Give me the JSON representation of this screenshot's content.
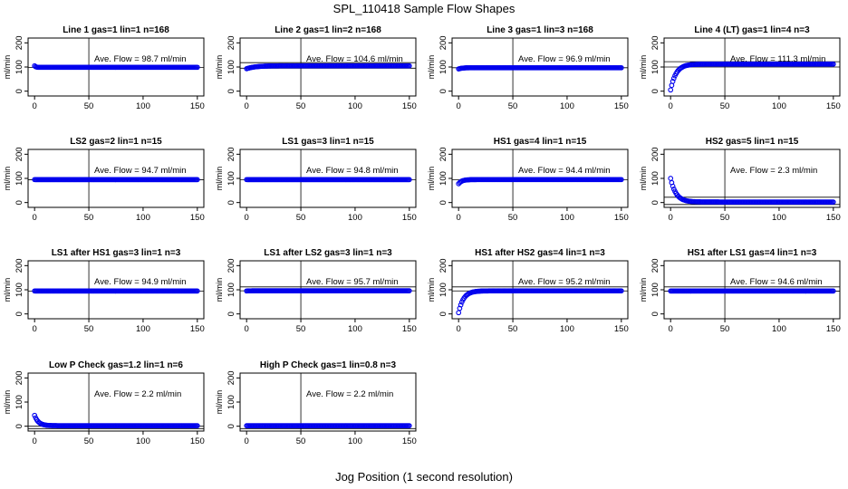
{
  "figure": {
    "title": "SPL_110418  Sample Flow Shapes",
    "xlabel": "Jog Position (1 second resolution)"
  },
  "chart_data": [
    {
      "type": "scatter",
      "title": "Line 1 gas=1 lin=1 n=168",
      "ylabel": "ml/min",
      "annotation": "Ave. Flow = 98.7  ml/min",
      "xlim": [
        0,
        150
      ],
      "ylim": [
        -20,
        220
      ],
      "xticks": [
        "0",
        "50",
        "100",
        "150"
      ],
      "yticks": [
        "0",
        "100",
        "200"
      ],
      "vline": 50,
      "hlines": [
        98.7
      ],
      "shape": {
        "start": 105,
        "end": 98.7,
        "tau": 1
      }
    },
    {
      "type": "scatter",
      "title": "Line 2 gas=1 lin=2 n=168",
      "ylabel": "ml/min",
      "annotation": "Ave. Flow = 104.6  ml/min",
      "xlim": [
        0,
        150
      ],
      "ylim": [
        -20,
        220
      ],
      "xticks": [
        "0",
        "50",
        "100",
        "150"
      ],
      "yticks": [
        "0",
        "100",
        "200"
      ],
      "vline": 50,
      "hlines": [
        95,
        118
      ],
      "shape": {
        "start": 93,
        "end": 105,
        "tau": 8
      }
    },
    {
      "type": "scatter",
      "title": "Line 3 gas=1 lin=3 n=168",
      "ylabel": "ml/min",
      "annotation": "Ave. Flow = 96.9  ml/min",
      "xlim": [
        0,
        150
      ],
      "ylim": [
        -20,
        220
      ],
      "xticks": [
        "0",
        "50",
        "100",
        "150"
      ],
      "yticks": [
        "0",
        "100",
        "200"
      ],
      "vline": 50,
      "hlines": [
        96.9
      ],
      "shape": {
        "start": 92,
        "end": 97,
        "tau": 3
      }
    },
    {
      "type": "scatter",
      "title": "Line 4 (LT) gas=1 lin=4 n=3",
      "ylabel": "ml/min",
      "annotation": "Ave. Flow = 111.3  ml/min",
      "xlim": [
        0,
        150
      ],
      "ylim": [
        -20,
        220
      ],
      "xticks": [
        "0",
        "50",
        "100",
        "150"
      ],
      "yticks": [
        "0",
        "100",
        "200"
      ],
      "vline": 50,
      "hlines": [
        100,
        122
      ],
      "shape": {
        "start": 5,
        "end": 112,
        "tau": 5
      }
    },
    {
      "type": "scatter",
      "title": "LS2 gas=2 lin=1 n=15",
      "ylabel": "ml/min",
      "annotation": "Ave. Flow = 94.7  ml/min",
      "xlim": [
        0,
        150
      ],
      "ylim": [
        -20,
        220
      ],
      "xticks": [
        "0",
        "50",
        "100",
        "150"
      ],
      "yticks": [
        "0",
        "100",
        "200"
      ],
      "vline": 50,
      "hlines": [
        94.7
      ],
      "shape": {
        "start": 95,
        "end": 94.7,
        "tau": 1
      }
    },
    {
      "type": "scatter",
      "title": "LS1 gas=3 lin=1 n=15",
      "ylabel": "ml/min",
      "annotation": "Ave. Flow = 94.8  ml/min",
      "xlim": [
        0,
        150
      ],
      "ylim": [
        -20,
        220
      ],
      "xticks": [
        "0",
        "50",
        "100",
        "150"
      ],
      "yticks": [
        "0",
        "100",
        "200"
      ],
      "vline": 50,
      "hlines": [
        94.8
      ],
      "shape": {
        "start": 95,
        "end": 94.8,
        "tau": 1
      }
    },
    {
      "type": "scatter",
      "title": "HS1 gas=4 lin=1 n=15",
      "ylabel": "ml/min",
      "annotation": "Ave. Flow = 94.4  ml/min",
      "xlim": [
        0,
        150
      ],
      "ylim": [
        -20,
        220
      ],
      "xticks": [
        "0",
        "50",
        "100",
        "150"
      ],
      "yticks": [
        "0",
        "100",
        "200"
      ],
      "vline": 50,
      "hlines": [
        94.4
      ],
      "shape": {
        "start": 78,
        "end": 95,
        "tau": 3
      }
    },
    {
      "type": "scatter",
      "title": "HS2 gas=5 lin=1 n=15",
      "ylabel": "ml/min",
      "annotation": "Ave. Flow = 2.3  ml/min",
      "xlim": [
        0,
        150
      ],
      "ylim": [
        -20,
        220
      ],
      "xticks": [
        "0",
        "50",
        "100",
        "150"
      ],
      "yticks": [
        "0",
        "100",
        "200"
      ],
      "vline": 50,
      "hlines": [
        -8,
        22
      ],
      "shape": {
        "start": 100,
        "end": 2.3,
        "tau": 5
      }
    },
    {
      "type": "scatter",
      "title": "LS1 after HS1 gas=3 lin=1 n=3",
      "ylabel": "ml/min",
      "annotation": "Ave. Flow = 94.9  ml/min",
      "xlim": [
        0,
        150
      ],
      "ylim": [
        -20,
        220
      ],
      "xticks": [
        "0",
        "50",
        "100",
        "150"
      ],
      "yticks": [
        "0",
        "100",
        "200"
      ],
      "vline": 50,
      "hlines": [
        94.9
      ],
      "shape": {
        "start": 95,
        "end": 94.9,
        "tau": 1
      }
    },
    {
      "type": "scatter",
      "title": "LS1 after LS2 gas=3 lin=1 n=3",
      "ylabel": "ml/min",
      "annotation": "Ave. Flow = 95.7  ml/min",
      "xlim": [
        0,
        150
      ],
      "ylim": [
        -20,
        220
      ],
      "xticks": [
        "0",
        "50",
        "100",
        "150"
      ],
      "yticks": [
        "0",
        "100",
        "200"
      ],
      "vline": 50,
      "hlines": [
        95.7,
        112
      ],
      "shape": {
        "start": 95,
        "end": 95.7,
        "tau": 1
      }
    },
    {
      "type": "scatter",
      "title": "HS1 after HS2 gas=4 lin=1 n=3",
      "ylabel": "ml/min",
      "annotation": "Ave. Flow = 95.2  ml/min",
      "xlim": [
        0,
        150
      ],
      "ylim": [
        -20,
        220
      ],
      "xticks": [
        "0",
        "50",
        "100",
        "150"
      ],
      "yticks": [
        "0",
        "100",
        "200"
      ],
      "vline": 50,
      "hlines": [
        95.2,
        112
      ],
      "shape": {
        "start": 5,
        "end": 95.5,
        "tau": 4.5
      }
    },
    {
      "type": "scatter",
      "title": "HS1 after LS1 gas=4 lin=1 n=3",
      "ylabel": "ml/min",
      "annotation": "Ave. Flow = 94.6  ml/min",
      "xlim": [
        0,
        150
      ],
      "ylim": [
        -20,
        220
      ],
      "xticks": [
        "0",
        "50",
        "100",
        "150"
      ],
      "yticks": [
        "0",
        "100",
        "200"
      ],
      "vline": 50,
      "hlines": [
        94.6,
        112
      ],
      "shape": {
        "start": 94.6,
        "end": 94.6,
        "tau": 1
      }
    },
    {
      "type": "scatter",
      "title": "Low P Check gas=1.2 lin=1 n=6",
      "ylabel": "ml/min",
      "annotation": "Ave. Flow = 2.2  ml/min",
      "xlim": [
        0,
        150
      ],
      "ylim": [
        -20,
        220
      ],
      "xticks": [
        "0",
        "50",
        "100",
        "150"
      ],
      "yticks": [
        "0",
        "100",
        "200"
      ],
      "vline": 50,
      "hlines": [
        -10,
        0
      ],
      "shape": {
        "start": 45,
        "end": 2.2,
        "tau": 3.5
      }
    },
    {
      "type": "scatter",
      "title": "High P Check gas=1 lin=0.8 n=3",
      "ylabel": "ml/min",
      "annotation": "Ave. Flow = 2.2  ml/min",
      "xlim": [
        0,
        150
      ],
      "ylim": [
        -20,
        220
      ],
      "xticks": [
        "0",
        "50",
        "100",
        "150"
      ],
      "yticks": [
        "0",
        "100",
        "200"
      ],
      "vline": 50,
      "hlines": [
        -10
      ],
      "shape": {
        "start": 2.2,
        "end": 2.2,
        "tau": 1
      }
    }
  ],
  "colors": {
    "points": "#0000ee",
    "axes": "#000000"
  }
}
